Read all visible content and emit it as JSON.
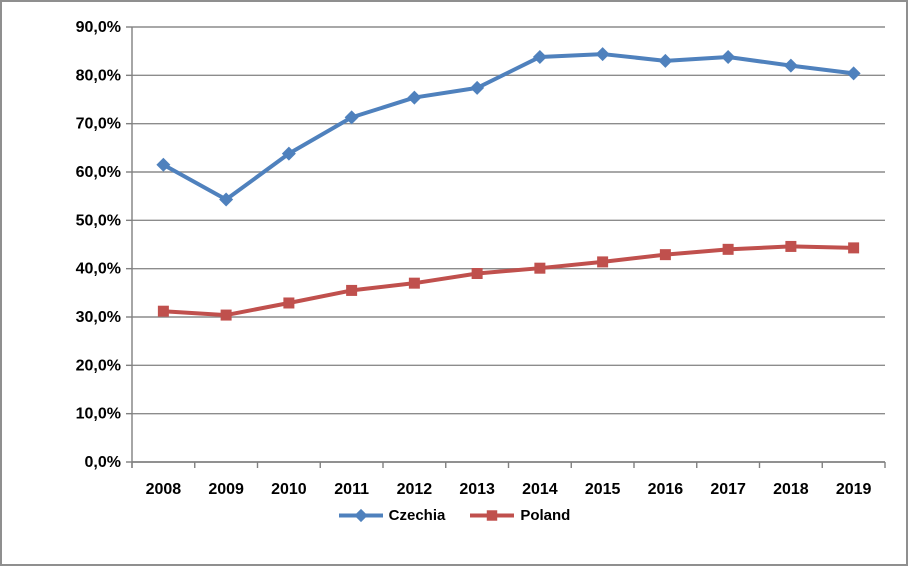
{
  "chart_data": {
    "type": "line",
    "title": "",
    "xlabel": "",
    "ylabel": "",
    "categories": [
      "2008",
      "2009",
      "2010",
      "2011",
      "2012",
      "2013",
      "2014",
      "2015",
      "2016",
      "2017",
      "2018",
      "2019"
    ],
    "series": [
      {
        "name": "Czechia",
        "color": "#4F81BD",
        "marker": "diamond",
        "values": [
          61.5,
          54.3,
          63.8,
          71.3,
          75.4,
          77.4,
          83.8,
          84.4,
          83.0,
          83.8,
          82.0,
          80.4
        ]
      },
      {
        "name": "Poland",
        "color": "#C0504D",
        "marker": "square",
        "values": [
          31.2,
          30.4,
          32.9,
          35.5,
          37.0,
          39.0,
          40.1,
          41.4,
          42.9,
          44.0,
          44.6,
          44.3
        ]
      }
    ],
    "ylim": [
      0,
      90
    ],
    "ytick_step": 10,
    "ytick_labels": [
      "0,0%",
      "10,0%",
      "20,0%",
      "30,0%",
      "40,0%",
      "50,0%",
      "60,0%",
      "70,0%",
      "80,0%",
      "90,0%"
    ],
    "value_format": "percent-comma-1dp",
    "grid": true,
    "legend_position": "bottom",
    "grid_color": "#8c8c8c",
    "axis_color": "#808080",
    "text_color": "#000000",
    "background_color": "#ffffff"
  }
}
